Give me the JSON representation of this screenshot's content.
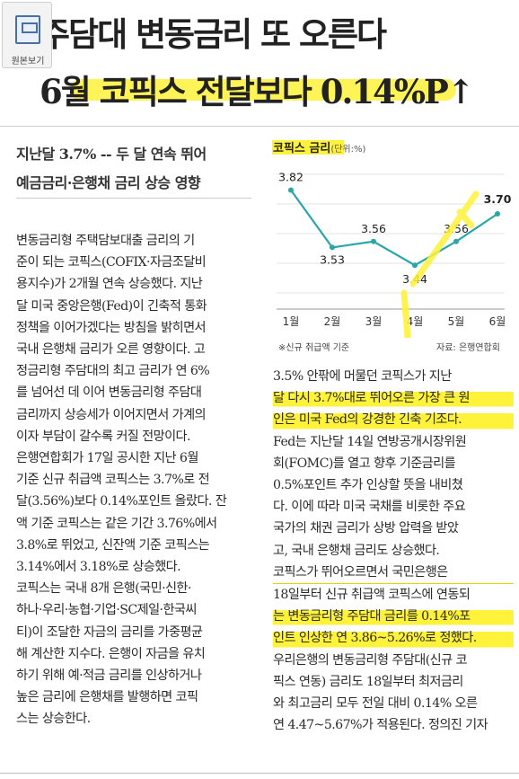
{
  "viewer": {
    "label": "원본보기",
    "icon": "original-view-icon"
  },
  "headline": {
    "line1": "주담대 변동금리 또 오른다",
    "line2": "6월 코픽스 전달보다 0.14%P↑"
  },
  "subheads": [
    "지난달 3.7% -- 두 달 연속 뛰어",
    "예금금리·은행채 금리 상승 영향"
  ],
  "chart_data": {
    "type": "line",
    "title": "코픽스 금리",
    "unit": "(단위:%)",
    "categories": [
      "1월",
      "2월",
      "3월",
      "4월",
      "5월",
      "6월"
    ],
    "values": [
      3.82,
      3.53,
      3.56,
      3.44,
      3.56,
      3.7
    ],
    "value_labels": [
      "3.82",
      "3.53",
      "3.56",
      "3.44",
      "3.56",
      "3.70"
    ],
    "note_left": "※신규 취급액 기준",
    "note_right": "자료: 은행연합회",
    "line_color": "#2aa6a8",
    "grid": true
  },
  "left_column": [
    "변동금리형 주택담보대출 금리의 기",
    "준이 되는 코픽스(COFIX·자금조달비",
    "용지수)가 2개월 연속 상승했다. 지난",
    "달 미국 중앙은행(Fed)이 긴축적 통화",
    "정책을 이어가겠다는 방침을 밝히면서",
    "국내 은행채 금리가 오른 영향이다. 고",
    "정금리형 주담대의 최고 금리가 연 6%",
    "를 넘어선 데 이어 변동금리형 주담대",
    "금리까지 상승세가 이어지면서 가계의",
    "이자 부담이 갈수록 커질 전망이다.",
    "  은행연합회가 17일 공시한 지난 6월",
    "기준 신규 취급액 코픽스는 3.7%로 전",
    "달(3.56%)보다 0.14%포인트 올랐다. 잔",
    "액 기준 코픽스는 같은 기간 3.76%에서",
    "3.8%로 뛰었고, 신잔액 기준 코픽스는",
    "3.14%에서 3.18%로 상승했다.",
    "  코픽스는 국내 8개 은행(국민·신한·",
    "하나·우리·농협·기업·SC제일·한국씨",
    "티)이 조달한 자금의 금리를 가중평균",
    "해 계산한 지수다. 은행이 자금을 유치",
    "하기 위해 예·적금 금리를 인상하거나",
    "높은 금리에 은행채를 발행하면 코픽",
    "스는 상승한다."
  ],
  "right_column": [
    "  3.5% 안팎에 머물던 코픽스가 지난",
    "달 다시 3.7%대로 뛰어오른 가장 큰 원",
    "인은 미국 Fed의 강경한 긴축 기조다.",
    "Fed는 지난달 14일 연방공개시장위원",
    "회(FOMC)를 열고 향후 기준금리를",
    "0.5%포인트 추가 인상할 뜻을 내비쳤",
    "다. 이에 따라 미국 국채를 비롯한 주요",
    "국가의 채권 금리가 상방 압력을 받았",
    "고, 국내 은행채 금리도 상승했다.",
    "  코픽스가 뛰어오르면서 국민은행은",
    "18일부터 신규 취급액 코픽스에 연동되",
    "는 변동금리형 주담대 금리를 0.14%포",
    "인트 인상한 연 3.86~5.26%로 정했다.",
    "우리은행의 변동금리형 주담대(신규 코",
    "픽스 연동) 금리도 18일부터 최저금리",
    "와 최고금리 모두 전일 대비 0.14% 오른",
    "연 4.47~5.67%가 적용된다.   정의진 기자"
  ]
}
